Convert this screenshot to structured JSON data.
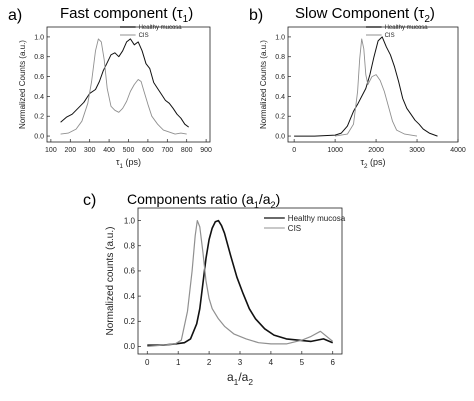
{
  "figure": {
    "line_colors": {
      "healthy": "#111111",
      "cis": "#909090"
    },
    "panels": [
      {
        "letter": "a)",
        "title": "Fast component (τ",
        "title_sub": "1",
        "title_tail": ")"
      },
      {
        "letter": "b)",
        "title": "Slow Component (τ",
        "title_sub": "2",
        "title_tail": ")"
      },
      {
        "letter": "c)",
        "title": "Components ratio (a",
        "title_sub": "1",
        "title_mid": "/a",
        "title_sub2": "2",
        "title_tail": ")"
      }
    ]
  },
  "chart_data": [
    {
      "type": "line",
      "title": "Fast component (τ1)",
      "xlabel": "τ1 (ps)",
      "ylabel": "Normalized Counts (a.u.)",
      "xlim": [
        80,
        920
      ],
      "ylim": [
        -0.06,
        1.1
      ],
      "xticks": [
        100,
        200,
        300,
        400,
        500,
        600,
        700,
        800,
        900
      ],
      "xtick_labels": [
        "100",
        "200",
        "300",
        "400",
        "500",
        "600",
        "700",
        "800",
        "900"
      ],
      "yticks": [
        0.0,
        0.2,
        0.4,
        0.6,
        0.8,
        1.0
      ],
      "ytick_labels": [
        "0.0",
        "0.2",
        "0.4",
        "0.6",
        "0.8",
        "1.0"
      ],
      "legend": "top-right",
      "series": [
        {
          "name": "Healthy mucosa",
          "key": "healthy",
          "x": [
            150,
            180,
            210,
            240,
            270,
            300,
            330,
            350,
            370,
            390,
            410,
            430,
            450,
            470,
            490,
            510,
            530,
            550,
            570,
            590,
            610,
            630,
            650,
            670,
            690,
            710,
            730,
            750,
            770,
            790,
            810
          ],
          "y": [
            0.14,
            0.19,
            0.22,
            0.28,
            0.34,
            0.43,
            0.47,
            0.55,
            0.66,
            0.74,
            0.82,
            0.84,
            0.8,
            0.86,
            0.95,
            0.98,
            0.92,
            0.95,
            0.86,
            0.73,
            0.68,
            0.54,
            0.48,
            0.42,
            0.36,
            0.33,
            0.28,
            0.22,
            0.18,
            0.12,
            0.09
          ]
        },
        {
          "name": "CIS",
          "key": "cis",
          "x": [
            150,
            190,
            230,
            260,
            290,
            310,
            330,
            345,
            360,
            375,
            390,
            410,
            430,
            450,
            470,
            490,
            510,
            530,
            550,
            565,
            580,
            600,
            620,
            650,
            680,
            710,
            740,
            770,
            800
          ],
          "y": [
            0.02,
            0.03,
            0.07,
            0.15,
            0.33,
            0.55,
            0.86,
            0.98,
            0.95,
            0.77,
            0.48,
            0.3,
            0.26,
            0.24,
            0.28,
            0.35,
            0.45,
            0.52,
            0.57,
            0.55,
            0.45,
            0.32,
            0.2,
            0.12,
            0.06,
            0.04,
            0.02,
            0.03,
            0.02
          ]
        }
      ]
    },
    {
      "type": "line",
      "title": "Slow Component (τ2)",
      "xlabel": "τ2 (ps)",
      "ylabel": "Normalized Counts (a.u.)",
      "xlim": [
        -150,
        4000
      ],
      "ylim": [
        -0.06,
        1.1
      ],
      "xticks": [
        0,
        1000,
        2000,
        3000,
        4000
      ],
      "xtick_labels": [
        "0",
        "1000",
        "2000",
        "3000",
        "4000"
      ],
      "yticks": [
        0.0,
        0.2,
        0.4,
        0.6,
        0.8,
        1.0
      ],
      "ytick_labels": [
        "0.0",
        "0.2",
        "0.4",
        "0.6",
        "0.8",
        "1.0"
      ],
      "legend": "top-right",
      "series": [
        {
          "name": "Healthy mucosa",
          "key": "healthy",
          "x": [
            0,
            500,
            1000,
            1150,
            1300,
            1450,
            1550,
            1650,
            1750,
            1850,
            1950,
            2050,
            2150,
            2250,
            2350,
            2450,
            2550,
            2650,
            2750,
            2850,
            2950,
            3050,
            3150,
            3300,
            3500
          ],
          "y": [
            0.0,
            0.0,
            0.01,
            0.03,
            0.1,
            0.25,
            0.32,
            0.4,
            0.48,
            0.62,
            0.8,
            0.96,
            1.0,
            0.9,
            0.82,
            0.7,
            0.55,
            0.38,
            0.28,
            0.22,
            0.16,
            0.12,
            0.07,
            0.03,
            0.0
          ]
        },
        {
          "name": "CIS",
          "key": "cis",
          "x": [
            1000,
            1300,
            1450,
            1550,
            1600,
            1650,
            1700,
            1750,
            1800,
            1900,
            2000,
            2100,
            2200,
            2300,
            2400,
            2500,
            2700,
            3000
          ],
          "y": [
            0.0,
            0.02,
            0.12,
            0.45,
            0.78,
            0.98,
            0.88,
            0.62,
            0.52,
            0.6,
            0.62,
            0.56,
            0.45,
            0.3,
            0.15,
            0.06,
            0.02,
            0.0
          ]
        }
      ]
    },
    {
      "type": "line",
      "title": "Components ratio (a1/a2)",
      "xlabel": "a1/a2",
      "ylabel": "Normalized counts (a.u.)",
      "xlim": [
        -0.3,
        6.3
      ],
      "ylim": [
        -0.06,
        1.1
      ],
      "xticks": [
        0,
        1,
        2,
        3,
        4,
        5,
        6
      ],
      "xtick_labels": [
        "0",
        "1",
        "2",
        "3",
        "4",
        "5",
        "6"
      ],
      "yticks": [
        0.0,
        0.2,
        0.4,
        0.6,
        0.8,
        1.0
      ],
      "ytick_labels": [
        "0.0",
        "0.2",
        "0.4",
        "0.6",
        "0.8",
        "1.0"
      ],
      "legend": "top-right",
      "series": [
        {
          "name": "Healthy mucosa",
          "key": "healthy",
          "x": [
            0.0,
            0.5,
            0.9,
            1.2,
            1.4,
            1.6,
            1.7,
            1.8,
            1.9,
            2.0,
            2.1,
            2.2,
            2.3,
            2.4,
            2.5,
            2.7,
            2.9,
            3.1,
            3.3,
            3.5,
            3.8,
            4.1,
            4.5,
            4.9,
            5.3,
            5.7,
            6.0
          ],
          "y": [
            0.01,
            0.01,
            0.02,
            0.03,
            0.06,
            0.18,
            0.3,
            0.5,
            0.7,
            0.85,
            0.94,
            0.99,
            1.0,
            0.96,
            0.9,
            0.72,
            0.55,
            0.42,
            0.3,
            0.22,
            0.14,
            0.09,
            0.06,
            0.05,
            0.04,
            0.06,
            0.03
          ]
        },
        {
          "name": "CIS",
          "key": "cis",
          "x": [
            0.0,
            0.5,
            0.9,
            1.1,
            1.3,
            1.45,
            1.55,
            1.62,
            1.7,
            1.8,
            1.9,
            2.0,
            2.1,
            2.3,
            2.5,
            2.8,
            3.2,
            3.6,
            4.0,
            4.5,
            5.0,
            5.3,
            5.6,
            6.0
          ],
          "y": [
            0.0,
            0.01,
            0.02,
            0.05,
            0.28,
            0.6,
            0.88,
            1.0,
            0.95,
            0.75,
            0.52,
            0.38,
            0.3,
            0.22,
            0.16,
            0.1,
            0.06,
            0.03,
            0.02,
            0.02,
            0.05,
            0.08,
            0.12,
            0.04
          ]
        }
      ]
    }
  ]
}
